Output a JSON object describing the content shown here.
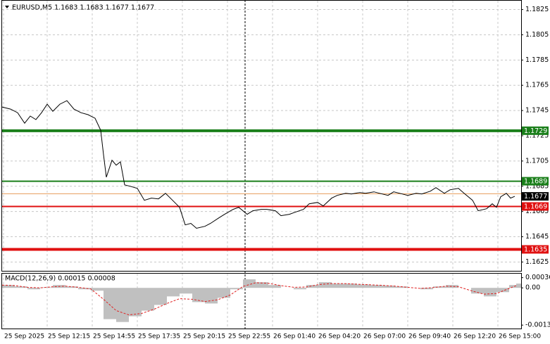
{
  "chart_data": [
    {
      "type": "line",
      "title": "EURUSD,M5  1.1683 1.1683 1.1677 1.1677",
      "xlim": [
        0,
        368.5
      ],
      "ylim": [
        1.1618,
        1.1832
      ],
      "xticks": [
        {
          "value": 1,
          "label": "25 Sep 2025"
        },
        {
          "value": 32,
          "label": "25 Sep 12:15"
        },
        {
          "value": 64,
          "label": "25 Sep 14:55"
        },
        {
          "value": 96,
          "label": "25 Sep 17:35"
        },
        {
          "value": 128,
          "label": "25 Sep 20:15"
        },
        {
          "value": 160,
          "label": "25 Sep 22:55"
        },
        {
          "value": 192,
          "label": "26 Sep 01:40"
        },
        {
          "value": 224,
          "label": "26 Sep 04:20"
        },
        {
          "value": 256,
          "label": "26 Sep 07:00"
        },
        {
          "value": 288,
          "label": "26 Sep 09:40"
        },
        {
          "value": 320,
          "label": "26 Sep 12:20"
        },
        {
          "value": 352,
          "label": "26 Sep 15:00"
        }
      ],
      "yticks": [
        1.1825,
        1.1805,
        1.1785,
        1.1765,
        1.1745,
        1.1725,
        1.1705,
        1.1685,
        1.1665,
        1.1645,
        1.1625
      ],
      "grid": true,
      "crosshair_x": 172.5,
      "series": [
        {
          "name": "EURUSD",
          "color": "#000000",
          "x": [
            0,
            6,
            11,
            16,
            20,
            24,
            28,
            32,
            36,
            41,
            46,
            51,
            56,
            61,
            66,
            70,
            72,
            74,
            78,
            81,
            84,
            87,
            91,
            96,
            101,
            106,
            111,
            116,
            121,
            126,
            130,
            134,
            138,
            144,
            148,
            154,
            158,
            164,
            168,
            174,
            178,
            184,
            188,
            194,
            198,
            204,
            208,
            214,
            218,
            224,
            228,
            234,
            238,
            244,
            248,
            254,
            258,
            264,
            268,
            274,
            278,
            284,
            288,
            294,
            298,
            304,
            308,
            314,
            318,
            324,
            328,
            334,
            338,
            344,
            348,
            351,
            354,
            358,
            361,
            364
          ],
          "values": [
            1.17478,
            1.17461,
            1.17433,
            1.1735,
            1.17406,
            1.17378,
            1.17433,
            1.175,
            1.17444,
            1.175,
            1.17528,
            1.17461,
            1.17433,
            1.17417,
            1.17389,
            1.17294,
            1.171,
            1.16922,
            1.17056,
            1.17017,
            1.17044,
            1.16861,
            1.1685,
            1.16833,
            1.16739,
            1.16756,
            1.1675,
            1.16794,
            1.16739,
            1.16683,
            1.16544,
            1.16556,
            1.16517,
            1.16533,
            1.16556,
            1.166,
            1.16628,
            1.16667,
            1.16683,
            1.16628,
            1.16656,
            1.16667,
            1.16667,
            1.16656,
            1.16617,
            1.16628,
            1.16644,
            1.16667,
            1.16711,
            1.16722,
            1.16694,
            1.16756,
            1.16778,
            1.16794,
            1.16789,
            1.168,
            1.16794,
            1.16806,
            1.16794,
            1.16778,
            1.16806,
            1.16789,
            1.16778,
            1.16794,
            1.16789,
            1.16811,
            1.16839,
            1.16794,
            1.16822,
            1.16833,
            1.16794,
            1.16739,
            1.16656,
            1.16672,
            1.16711,
            1.16683,
            1.16767,
            1.16794,
            1.16756,
            1.1677
          ]
        }
      ],
      "levels": [
        {
          "value": 1.1729,
          "label": "1.1729",
          "color": "#1a7f1a",
          "width": 4
        },
        {
          "value": 1.1689,
          "label": "1.1689",
          "color": "#1a7f1a",
          "width": 2
        },
        {
          "value": 1.1679,
          "color": "#e8a060",
          "width": 1
        },
        {
          "value": 1.1677,
          "label": "1.1677",
          "color": "#000000",
          "width": 0
        },
        {
          "value": 1.1669,
          "label": "1.1669",
          "color": "#e01010",
          "width": 2
        },
        {
          "value": 1.1635,
          "label": "1.1635",
          "color": "#e01010",
          "width": 4
        }
      ]
    },
    {
      "type": "macd",
      "title": "MACD(12,26,9) 0.00015 0.00008",
      "xlim": [
        0,
        368.5
      ],
      "ylim": [
        -0.00143,
        0.0005
      ],
      "yticks": [
        0.00036,
        {
          "value": 0,
          "label": "0.00"
        },
        -0.00131
      ],
      "x": [
        0,
        9,
        18,
        27,
        36,
        45,
        54,
        63,
        72,
        81,
        90,
        99,
        108,
        117,
        126,
        135,
        144,
        153,
        162,
        171,
        180,
        189,
        198,
        207,
        216,
        225,
        234,
        243,
        252,
        261,
        270,
        279,
        288,
        297,
        306,
        315,
        324,
        333,
        342,
        351,
        360,
        365
      ],
      "series": [
        {
          "name": "MACD",
          "color": "#c0c0c0",
          "values": [
            0.0001,
            5e-05,
            -5e-05,
            2e-05,
            0.0001,
            5e-05,
            -5e-05,
            -0.0001,
            -0.0011,
            -0.0012,
            -0.001,
            -0.0008,
            -0.0006,
            -0.0003,
            -0.0002,
            -0.0005,
            -0.00055,
            -0.00035,
            -5e-05,
            0.0003,
            0.0002,
            0.0001,
            0,
            -5e-05,
            0.0001,
            0.0002,
            0.00015,
            0.00015,
            0.00012,
            0.0001,
            8e-05,
            5e-05,
            0,
            -5e-05,
            5e-05,
            0.0001,
            0,
            -0.0002,
            -0.0003,
            -0.00015,
            0.0001,
            0.00015
          ]
        },
        {
          "name": "Signal",
          "color": "#e02020",
          "values": [
            0.0001,
            8e-05,
            2e-05,
            0,
            4e-05,
            6e-05,
            2e-05,
            -4e-05,
            -0.0004,
            -0.0008,
            -0.00095,
            -0.0009,
            -0.00075,
            -0.00055,
            -0.00038,
            -0.0004,
            -0.00048,
            -0.00042,
            -0.00025,
            5e-05,
            0.00018,
            0.00016,
            8e-05,
            2e-05,
            3e-05,
            0.00012,
            0.00015,
            0.00015,
            0.00013,
            0.00011,
            9e-05,
            6e-05,
            2e-05,
            -2e-05,
            1e-05,
            6e-05,
            4e-05,
            -0.0001,
            -0.00022,
            -0.0002,
            -2e-05,
            8e-05
          ]
        }
      ]
    }
  ]
}
